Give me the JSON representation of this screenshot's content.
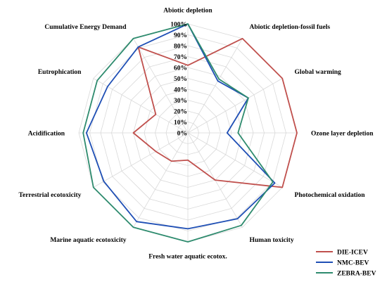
{
  "chart_data": {
    "type": "radar",
    "title": "",
    "categories": [
      "Abiotic depletion",
      "Abiotic depletion-fossil fuels",
      "Global warming",
      "Ozone layer depletion",
      "Photochemical oxidation",
      "Human toxicity",
      "Fresh water aquatic ecotox.",
      "Marine aquatic ecotoxicity",
      "Terrestrial ecotoxicity",
      "Acidification",
      "Eutrophication",
      "Cumulative Energy Demand"
    ],
    "rlim": [
      0,
      100
    ],
    "ticks": [
      "0%",
      "10%",
      "20%",
      "30%",
      "40%",
      "50%",
      "60%",
      "70%",
      "80%",
      "90%",
      "100%"
    ],
    "grid": true,
    "legend_position": "bottom-right",
    "series": [
      {
        "name": "DIE-ICEV",
        "color": "#c0504d",
        "values": [
          62,
          100,
          100,
          100,
          100,
          50,
          25,
          30,
          34,
          50,
          34,
          91
        ]
      },
      {
        "name": "NMC-BEV",
        "color": "#1f4fb5",
        "values": [
          100,
          55,
          64,
          36,
          92,
          91,
          88,
          94,
          89,
          93,
          85,
          91
        ]
      },
      {
        "name": "ZEBRA-BEV",
        "color": "#2e8b6e",
        "values": [
          100,
          57,
          64,
          46,
          90,
          98,
          100,
          100,
          100,
          96,
          96,
          100
        ]
      }
    ]
  }
}
